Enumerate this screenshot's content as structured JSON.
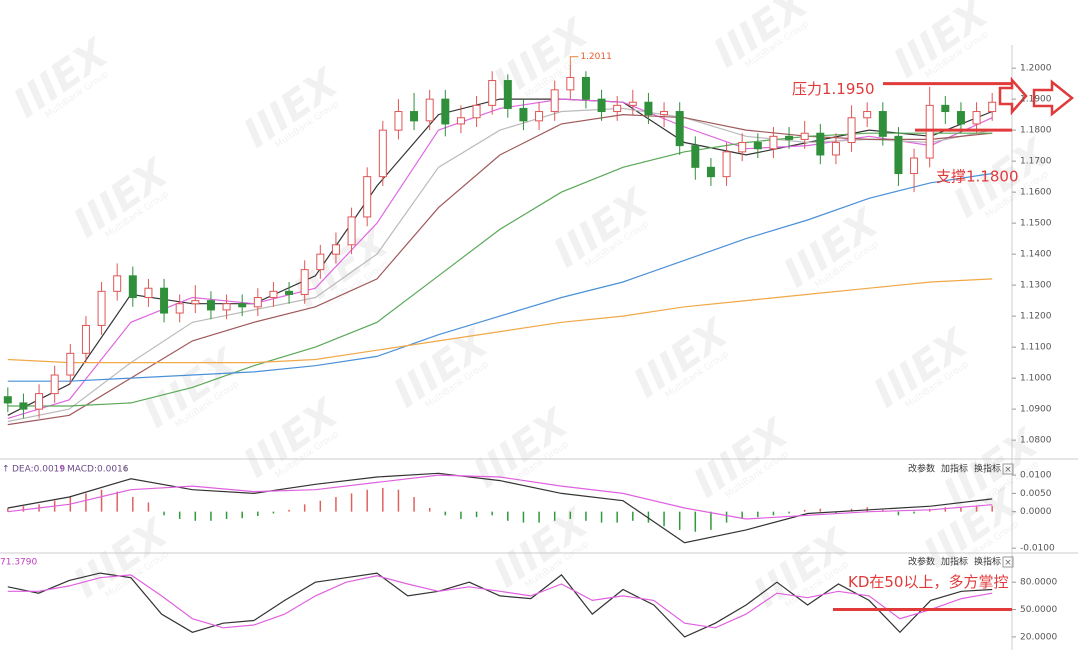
{
  "chart_data": [
    {
      "type": "candlestick",
      "open": [
        1.094,
        1.092,
        1.09,
        1.095,
        1.101,
        1.108,
        1.117,
        1.128,
        1.133,
        1.126,
        1.129,
        1.121,
        1.124,
        1.125,
        1.122,
        1.124,
        1.123,
        1.126,
        1.128,
        1.127,
        1.135,
        1.14,
        1.143,
        1.152,
        1.165,
        1.18,
        1.186,
        1.183,
        1.19,
        1.182,
        1.184,
        1.188,
        1.196,
        1.187,
        1.183,
        1.186,
        1.193,
        1.197,
        1.19,
        1.186,
        1.188,
        1.189,
        1.185,
        1.186,
        1.175,
        1.168,
        1.165,
        1.173,
        1.176,
        1.174,
        1.178,
        1.177,
        1.179,
        1.172,
        1.176,
        1.184,
        1.186,
        1.178,
        1.166,
        1.171,
        1.188,
        1.186,
        1.182,
        1.186
      ],
      "high": [
        1.097,
        1.095,
        1.098,
        1.104,
        1.111,
        1.12,
        1.131,
        1.137,
        1.136,
        1.132,
        1.132,
        1.127,
        1.13,
        1.128,
        1.127,
        1.127,
        1.129,
        1.131,
        1.131,
        1.138,
        1.143,
        1.147,
        1.155,
        1.168,
        1.183,
        1.19,
        1.192,
        1.193,
        1.193,
        1.188,
        1.191,
        1.199,
        1.198,
        1.19,
        1.189,
        1.196,
        1.2011,
        1.199,
        1.193,
        1.191,
        1.193,
        1.192,
        1.189,
        1.189,
        1.178,
        1.171,
        1.176,
        1.179,
        1.179,
        1.181,
        1.181,
        1.183,
        1.182,
        1.179,
        1.188,
        1.189,
        1.189,
        1.181,
        1.174,
        1.194,
        1.191,
        1.189,
        1.189,
        1.192
      ],
      "low": [
        1.089,
        1.087,
        1.087,
        1.092,
        1.098,
        1.105,
        1.114,
        1.125,
        1.123,
        1.123,
        1.118,
        1.118,
        1.121,
        1.119,
        1.119,
        1.12,
        1.12,
        1.123,
        1.124,
        1.124,
        1.132,
        1.137,
        1.14,
        1.149,
        1.162,
        1.177,
        1.18,
        1.18,
        1.178,
        1.179,
        1.181,
        1.185,
        1.184,
        1.18,
        1.18,
        1.183,
        1.19,
        1.187,
        1.183,
        1.183,
        1.185,
        1.182,
        1.181,
        1.172,
        1.164,
        1.162,
        1.162,
        1.17,
        1.171,
        1.171,
        1.174,
        1.174,
        1.169,
        1.169,
        1.173,
        1.181,
        1.175,
        1.162,
        1.16,
        1.168,
        1.182,
        1.179,
        1.179,
        1.183
      ],
      "close": [
        1.092,
        1.09,
        1.095,
        1.101,
        1.108,
        1.117,
        1.128,
        1.133,
        1.126,
        1.129,
        1.121,
        1.124,
        1.125,
        1.122,
        1.124,
        1.123,
        1.126,
        1.128,
        1.127,
        1.135,
        1.14,
        1.143,
        1.152,
        1.165,
        1.18,
        1.186,
        1.183,
        1.19,
        1.182,
        1.184,
        1.188,
        1.196,
        1.187,
        1.183,
        1.186,
        1.193,
        1.197,
        1.19,
        1.186,
        1.188,
        1.189,
        1.185,
        1.186,
        1.175,
        1.168,
        1.165,
        1.173,
        1.176,
        1.174,
        1.178,
        1.177,
        1.179,
        1.172,
        1.176,
        1.184,
        1.186,
        1.178,
        1.166,
        1.171,
        1.188,
        1.186,
        1.182,
        1.186,
        1.189
      ],
      "up_color": "#e05555",
      "down_color": "#2f8f3a",
      "series": [
        {
          "color": "#333333",
          "values": [
            1.088,
            1.098,
            1.127,
            1.124,
            1.124,
            1.133,
            1.162,
            1.185,
            1.19,
            1.19,
            1.189,
            1.176,
            1.172,
            1.176,
            1.18,
            1.178,
            1.186
          ]
        },
        {
          "color": "#e066e0",
          "values": [
            1.087,
            1.093,
            1.118,
            1.126,
            1.124,
            1.129,
            1.15,
            1.18,
            1.187,
            1.19,
            1.189,
            1.181,
            1.174,
            1.175,
            1.178,
            1.175,
            1.184
          ]
        },
        {
          "color": "#bbbbbb",
          "values": [
            1.086,
            1.09,
            1.105,
            1.118,
            1.122,
            1.126,
            1.14,
            1.168,
            1.18,
            1.186,
            1.187,
            1.184,
            1.178,
            1.176,
            1.177,
            1.176,
            1.18
          ]
        },
        {
          "color": "#a0585a",
          "values": [
            1.085,
            1.088,
            1.1,
            1.112,
            1.118,
            1.123,
            1.132,
            1.155,
            1.172,
            1.182,
            1.185,
            1.184,
            1.18,
            1.178,
            1.177,
            1.177,
            1.179
          ]
        },
        {
          "color": "#5aa858",
          "values": [
            1.091,
            1.091,
            1.092,
            1.097,
            1.104,
            1.11,
            1.118,
            1.133,
            1.148,
            1.16,
            1.168,
            1.173,
            1.176,
            1.178,
            1.179,
            1.179,
            1.179
          ]
        },
        {
          "color": "#4a90d9",
          "values": [
            1.099,
            1.099,
            1.1,
            1.101,
            1.102,
            1.104,
            1.107,
            1.114,
            1.12,
            1.126,
            1.131,
            1.138,
            1.145,
            1.151,
            1.158,
            1.163,
            1.166
          ]
        },
        {
          "color": "#f0a848",
          "values": [
            1.106,
            1.105,
            1.105,
            1.105,
            1.105,
            1.106,
            1.109,
            1.112,
            1.115,
            1.118,
            1.12,
            1.123,
            1.125,
            1.127,
            1.129,
            1.131,
            1.132
          ]
        }
      ],
      "ylim": [
        1.0752,
        1.2065
      ],
      "yticks": [
        {
          "value": 1.08,
          "label": "1.0800"
        },
        {
          "value": 1.09,
          "label": "1.0900"
        },
        {
          "value": 1.1,
          "label": "1.1000"
        },
        {
          "value": 1.11,
          "label": "1.1100"
        },
        {
          "value": 1.12,
          "label": "1.1200"
        },
        {
          "value": 1.13,
          "label": "1.1300"
        },
        {
          "value": 1.14,
          "label": "1.1400"
        },
        {
          "value": 1.15,
          "label": "1.1500"
        },
        {
          "value": 1.16,
          "label": "1.1600"
        },
        {
          "value": 1.17,
          "label": "1.1700"
        },
        {
          "value": 1.18,
          "label": "1.1800"
        },
        {
          "value": 1.19,
          "label": "1.1900"
        },
        {
          "value": 1.2,
          "label": "1.2000"
        }
      ],
      "peak_label": 1.2011,
      "annotations": [
        {
          "text": "压力1.1950",
          "value": 1.195
        },
        {
          "text": "支撑1.1800",
          "value": 1.18
        }
      ]
    },
    {
      "type": "macd",
      "header": [
        "DEA:0.0019",
        "MACD:0.0016"
      ],
      "values": [
        0.001,
        0.0015,
        0.002,
        0.003,
        0.004,
        0.005,
        0.006,
        0.0055,
        0.004,
        0.0025,
        -0.001,
        -0.002,
        -0.0025,
        -0.0025,
        -0.002,
        -0.0018,
        -0.0012,
        -0.0005,
        0.0005,
        0.002,
        0.003,
        0.004,
        0.005,
        0.006,
        0.0065,
        0.006,
        0.004,
        0.001,
        -0.001,
        -0.002,
        -0.0015,
        -0.001,
        -0.0025,
        -0.003,
        -0.003,
        -0.0025,
        -0.002,
        -0.0025,
        -0.003,
        -0.003,
        -0.0025,
        -0.003,
        -0.004,
        -0.005,
        -0.0055,
        -0.005,
        -0.003,
        -0.002,
        -0.0015,
        -0.001,
        -0.0005,
        0.0005,
        0.0008,
        -0.0005,
        0.0008,
        0.0012,
        0.0005,
        -0.001,
        -0.0005,
        0.0008,
        0.0012,
        0.0012,
        0.0014,
        0.0016
      ],
      "up_color": "#e06060",
      "down_color": "#2f9a3a",
      "series": [
        {
          "color": "#333333",
          "values": [
            0.001,
            0.004,
            0.009,
            0.006,
            0.005,
            0.0075,
            0.0095,
            0.0105,
            0.0085,
            0.005,
            0.003,
            -0.0085,
            -0.005,
            -0.0005,
            0.0005,
            0.0015,
            0.0035
          ]
        },
        {
          "color": "#e060e0",
          "values": [
            0.0,
            0.002,
            0.006,
            0.007,
            0.0055,
            0.006,
            0.008,
            0.01,
            0.0095,
            0.007,
            0.005,
            0.001,
            -0.002,
            -0.001,
            0.0,
            0.0005,
            0.0019
          ]
        }
      ],
      "ylim": [
        -0.0105,
        0.0125
      ],
      "yticks": [
        {
          "value": 0.01,
          "label": "0.0100"
        },
        {
          "value": 0.005,
          "label": "0.0050"
        },
        {
          "value": 0,
          "label": "0.0000"
        },
        {
          "value": -0.01,
          "label": "-0.0100"
        }
      ]
    },
    {
      "type": "kd",
      "header": "71.3790",
      "series": [
        {
          "color": "#333333",
          "values": [
            75,
            68,
            82,
            90,
            85,
            45,
            25,
            35,
            38,
            60,
            80,
            85,
            90,
            65,
            70,
            80,
            65,
            62,
            88,
            45,
            72,
            55,
            20,
            35,
            55,
            80,
            55,
            78,
            60,
            25,
            60,
            70,
            72
          ]
        },
        {
          "color": "#e060e0",
          "values": [
            70,
            70,
            76,
            85,
            88,
            65,
            40,
            30,
            33,
            45,
            65,
            80,
            87,
            78,
            70,
            75,
            70,
            65,
            78,
            60,
            65,
            60,
            35,
            30,
            45,
            68,
            63,
            70,
            65,
            40,
            50,
            62,
            68
          ]
        }
      ],
      "ylim": [
        10,
        100
      ],
      "yticks": [
        {
          "value": 80,
          "label": "80.0000"
        },
        {
          "value": 50,
          "label": "50.0000"
        },
        {
          "value": 20,
          "label": "20.0000"
        }
      ],
      "annotations": [
        {
          "text": "KD在50以上，多方掌控",
          "value": 50
        }
      ]
    }
  ],
  "toolbar": [
    "改参数",
    "加指标",
    "换指标"
  ],
  "watermark": {
    "logo": "IIIEX",
    "group": "MultiBank Group"
  }
}
